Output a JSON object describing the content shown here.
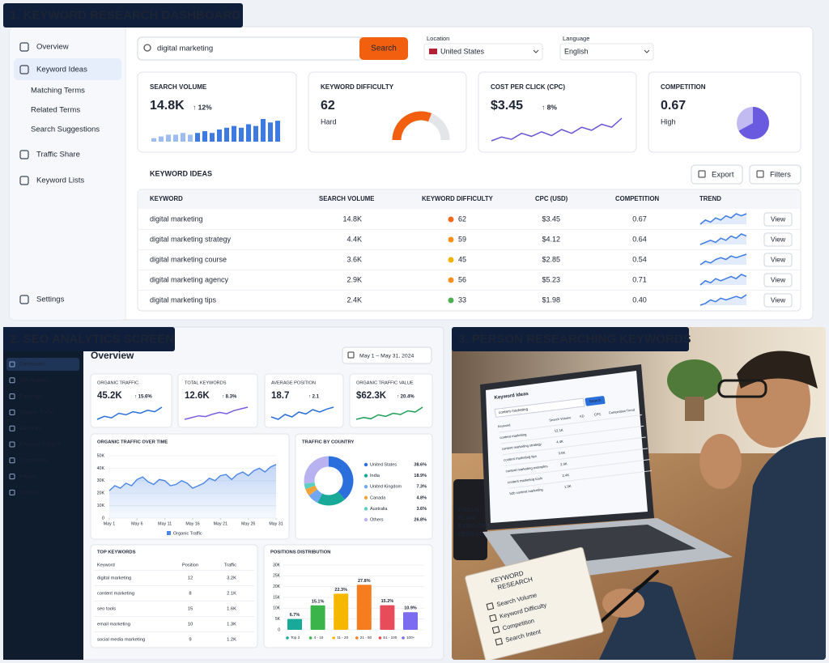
{
  "dashboard": {
    "label": "1. KEYWORD RESEARCH DASHBOARD",
    "nav": [
      "Overview",
      "Keyword Ideas",
      "Matching Terms",
      "Related Terms",
      "Search Suggestions",
      "Traffic Share",
      "Keyword Lists",
      "Settings"
    ],
    "search_query": "digital marketing",
    "search_button": "Search",
    "location_label": "Location",
    "location": "United States",
    "language_label": "Language",
    "language": "English",
    "cards": {
      "volume": {
        "title": "SEARCH VOLUME",
        "value": "14.8K",
        "change": "↑ 12%",
        "bars": [
          2,
          3,
          4,
          4,
          5,
          4,
          5,
          6,
          5,
          7,
          8,
          9,
          8,
          10,
          9,
          13,
          11,
          12
        ]
      },
      "difficulty": {
        "title": "KEYWORD DIFFICULTY",
        "value": 62,
        "status": "Hard",
        "gauge_lim": [
          0,
          100
        ]
      },
      "cpc": {
        "title": "COST PER CLICK (CPC)",
        "value": "$3.45",
        "change": "↑ 8%",
        "line": [
          3,
          4,
          3.4,
          5,
          4.2,
          5.4,
          4.4,
          6,
          5,
          6.6,
          5.8,
          7.4,
          6.6,
          9
        ]
      },
      "competition": {
        "title": "COMPETITION",
        "value": 0.67,
        "status": "High"
      }
    },
    "table": {
      "title": "KEYWORD IDEAS",
      "export": "Export",
      "filters": "Filters",
      "columns": [
        "KEYWORD",
        "SEARCH VOLUME",
        "KEYWORD DIFFICULTY",
        "CPC (USD)",
        "COMPETITION",
        "TREND"
      ],
      "rows": [
        [
          "digital marketing",
          "14.8K",
          62,
          "$3.45",
          "0.67"
        ],
        [
          "digital marketing strategy",
          "4.4K",
          59,
          "$4.12",
          "0.64"
        ],
        [
          "digital marketing course",
          "3.6K",
          45,
          "$2.85",
          "0.54"
        ],
        [
          "digital marketing agency",
          "2.9K",
          56,
          "$5.23",
          "0.71"
        ],
        [
          "digital marketing tips",
          "2.4K",
          33,
          "$1.98",
          "0.40"
        ]
      ],
      "trends": [
        [
          3,
          5,
          4,
          6,
          5,
          7,
          6,
          8,
          7,
          8
        ],
        [
          3,
          4,
          5,
          4,
          6,
          5,
          7,
          6,
          8,
          7
        ],
        [
          2,
          4,
          3,
          5,
          6,
          5,
          7,
          6,
          7,
          8
        ],
        [
          3,
          5,
          4,
          6,
          5,
          6,
          7,
          6,
          8,
          7
        ],
        [
          2,
          3,
          5,
          4,
          6,
          5,
          6,
          7,
          6,
          8
        ]
      ],
      "action": "View"
    }
  },
  "seo": {
    "label": "2. SEO ANALYTICS SCREEN",
    "nav": [
      "Dashboard",
      "Site Analytics",
      "Rankings",
      "Organic Traffic",
      "Backlinks",
      "Keyword Analysis",
      "Competitors",
      "Reports",
      "Settings"
    ],
    "title": "Overview",
    "date_range": "May 1 – May 31, 2024",
    "metrics": [
      {
        "title": "ORGANIC TRAFFIC",
        "value": "45.2K",
        "change": "↑ 15.6%",
        "color": "#2a6fdb",
        "spark": [
          3,
          4,
          3.5,
          5,
          4.5,
          5.5,
          5,
          6,
          5.5,
          7
        ]
      },
      {
        "title": "TOTAL KEYWORDS",
        "value": "12.6K",
        "change": "↑ 8.3%",
        "color": "#7b5ce0",
        "spark": [
          3,
          3.5,
          4,
          3.8,
          4.5,
          5,
          4.6,
          5.5,
          6,
          6.5
        ]
      },
      {
        "title": "AVERAGE POSITION",
        "value": "18.7",
        "change": "↑ 2.1",
        "color": "#2a6fdb",
        "spark": [
          4,
          3.5,
          4.5,
          4,
          5,
          4.6,
          5.5,
          5,
          5.6,
          6
        ]
      },
      {
        "title": "ORGANIC TRAFFIC VALUE",
        "value": "$62.3K",
        "change": "↑ 20.4%",
        "color": "#1f9d55",
        "spark": [
          3,
          3.6,
          3.2,
          4.5,
          4,
          5,
          4.6,
          5.8,
          5.4,
          7
        ]
      }
    ],
    "traffic_chart": {
      "type": "line",
      "title": "ORGANIC TRAFFIC OVER TIME",
      "x": [
        1,
        2,
        3,
        4,
        5,
        6,
        7,
        8,
        9,
        10,
        11,
        12,
        13,
        14,
        15,
        16,
        17,
        18,
        19,
        20,
        21,
        22,
        23,
        24,
        25,
        26,
        27,
        28,
        29,
        30,
        31
      ],
      "series": [
        {
          "name": "Organic Traffic",
          "color": "#4a86e8",
          "values": [
            22000,
            26000,
            24000,
            28000,
            26000,
            31000,
            33000,
            29000,
            27000,
            31000,
            30000,
            26000,
            27000,
            30000,
            28000,
            24000,
            26000,
            28000,
            32000,
            30000,
            34000,
            35000,
            31000,
            35000,
            37000,
            34000,
            38000,
            40000,
            37000,
            41000,
            43000
          ]
        }
      ],
      "xlim": [
        1,
        31
      ],
      "xticks": [
        {
          "value": 1,
          "label": "May 1"
        },
        {
          "value": 6,
          "label": "May 6"
        },
        {
          "value": 11,
          "label": "May 11"
        },
        {
          "value": 16,
          "label": "May 16"
        },
        {
          "value": 21,
          "label": "May 21"
        },
        {
          "value": 26,
          "label": "May 26"
        },
        {
          "value": 31,
          "label": "May 31"
        }
      ],
      "ylim": [
        0,
        50000
      ],
      "yticks": [
        0,
        {
          "value": 10000,
          "label": "10K"
        },
        {
          "value": 20000,
          "label": "20K"
        },
        {
          "value": 30000,
          "label": "30K"
        },
        {
          "value": 40000,
          "label": "40K"
        },
        {
          "value": 50000,
          "label": "50K"
        }
      ],
      "grid": true
    },
    "country_chart": {
      "type": "pie",
      "title": "TRAFFIC BY COUNTRY",
      "categories": [
        "United States",
        "India",
        "United Kingdom",
        "Canada",
        "Australia",
        "Others"
      ],
      "values": [
        38.6,
        18.9,
        7.3,
        4.8,
        3.6,
        26.8
      ],
      "value_labels": [
        "38.6%",
        "18.9%",
        "7.3%",
        "4.8%",
        "3.6%",
        "26.8%"
      ],
      "colors": [
        "#2a6fdb",
        "#18a999",
        "#6fa8f0",
        "#f2a33a",
        "#5ccfc0",
        "#b9b2f0"
      ]
    },
    "top_keywords": {
      "title": "TOP KEYWORDS",
      "columns": [
        "Keyword",
        "Position",
        "Traffic"
      ],
      "rows": [
        [
          "digital marketing",
          "12",
          "3.2K"
        ],
        [
          "content marketing",
          "8",
          "2.1K"
        ],
        [
          "seo tools",
          "15",
          "1.6K"
        ],
        [
          "email marketing",
          "10",
          "1.3K"
        ],
        [
          "social media marketing",
          "9",
          "1.2K"
        ]
      ]
    },
    "positions_chart": {
      "type": "bar",
      "title": "POSITIONS DISTRIBUTION",
      "categories": [
        "Top 3",
        "4 - 10",
        "11 - 20",
        "21 - 50",
        "51 - 100",
        "100+"
      ],
      "values": [
        6.7,
        15.1,
        22.3,
        27.8,
        15.2,
        10.9
      ],
      "value_labels": [
        "6.7%",
        "15.1%",
        "22.3%",
        "27.8%",
        "15.2%",
        "10.9%"
      ],
      "colors": [
        "#18a999",
        "#3bb54a",
        "#f5b700",
        "#f57c1f",
        "#e84c5a",
        "#7b6cf0"
      ],
      "y_axis_labels": [
        "30K",
        "25K",
        "20K",
        "15K",
        "10K",
        "5K",
        "0"
      ]
    }
  },
  "photo": {
    "label": "3. PERSON RESEARCHING KEYWORDS",
    "screen_title": "Keyword Ideas",
    "screen_button": "Search",
    "screen_query": "content marketing",
    "screen_columns": [
      "Keyword",
      "Search Volume",
      "KD",
      "CPC",
      "Competition",
      "Trend"
    ],
    "screen_rows": [
      [
        "content marketing",
        "12.1K"
      ],
      [
        "content marketing strategy",
        "4.4K"
      ],
      [
        "content marketing tips",
        "3.6K"
      ],
      [
        "content marketing examples",
        "2.9K"
      ],
      [
        "content marketing tools",
        "2.4K"
      ],
      [
        "b2b content marketing",
        "1.9K"
      ]
    ],
    "mug": [
      "FOCUS",
      "PLAN",
      "EXECUTE",
      "REPEAT"
    ],
    "notebook_title": [
      "KEYWORD",
      "RESEARCH"
    ],
    "notebook_items": [
      "Search Volume",
      "Keyword Difficulty",
      "Competition",
      "Search Intent"
    ]
  }
}
